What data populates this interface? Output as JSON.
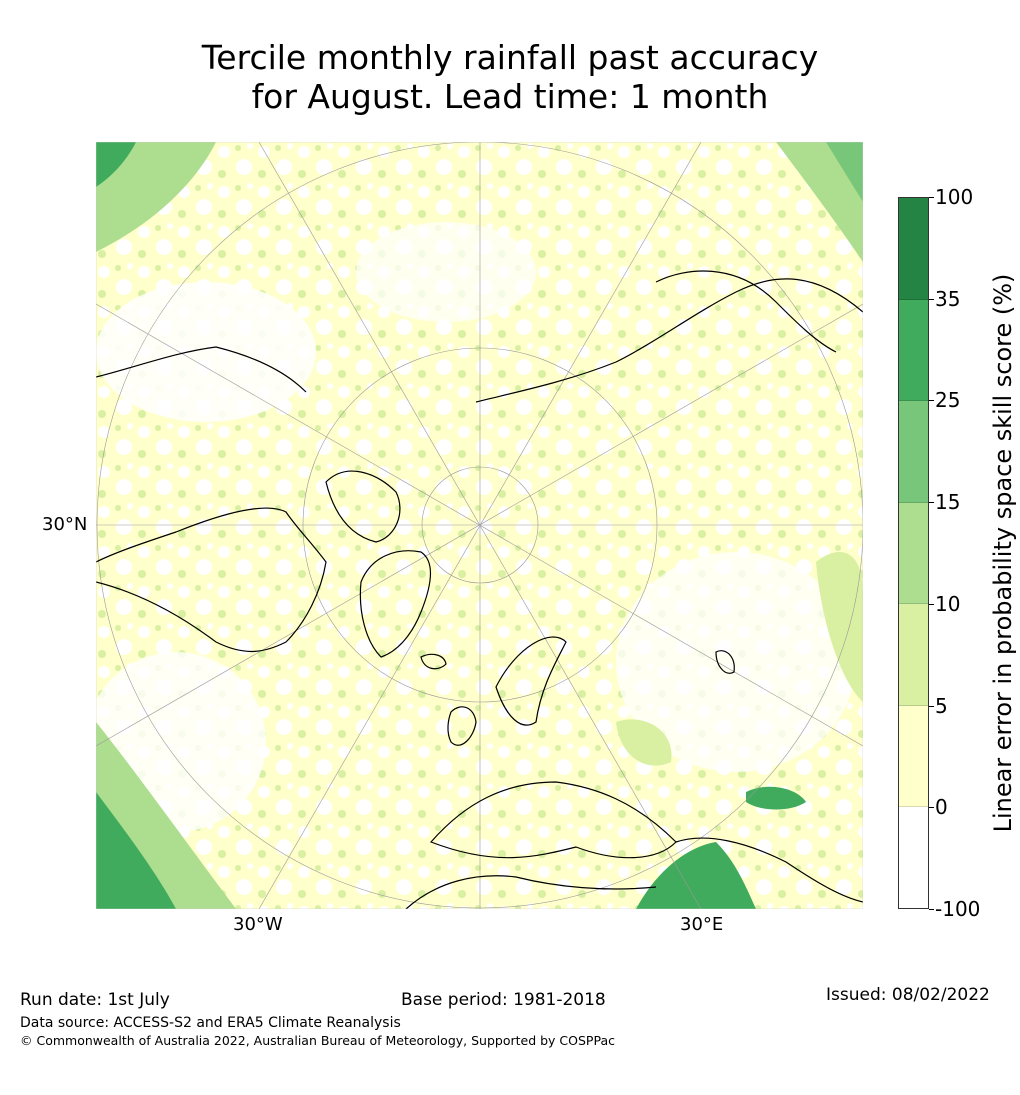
{
  "title_line1": "Tercile monthly rainfall past accuracy",
  "title_line2": "for August. Lead time: 1 month",
  "map": {
    "projection": "north polar stereographic",
    "lat_label": "30°N",
    "lon_labels": [
      "30°W",
      "30°E"
    ],
    "ocean_color": "#ffffff",
    "coast_color": "#000000"
  },
  "colorbar": {
    "label": "Linear error in probability space skill score (%)",
    "ticks": [
      "100",
      "35",
      "25",
      "15",
      "10",
      "5",
      "0",
      "-100"
    ],
    "colors": [
      "#238443",
      "#41ab5d",
      "#78c679",
      "#addd8e",
      "#d9f0a3",
      "#ffffcc",
      "#ffffff"
    ]
  },
  "footer": {
    "run_date": "Run date: 1st July",
    "base_period": "Base period: 1981-2018",
    "issued": "Issued: 08/02/2022",
    "data_source": "Data source: ACCESS-S2 and ERA5 Climate Reanalysis",
    "copyright": "© Commonwealth of Australia 2022, Australian Bureau of Meteorology, Supported by COSPPac"
  }
}
